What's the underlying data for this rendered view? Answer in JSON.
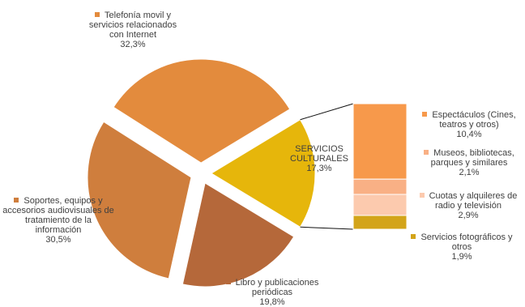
{
  "chart_data": {
    "type": "bar-of-pie",
    "pie": [
      {
        "name": "Telefonía movil y servicios relacionados con Internet",
        "value": "32,3%",
        "pct": 32.3,
        "color": "#E38B3D"
      },
      {
        "name": "SERVICIOS CULTURALES",
        "value": "17,3%",
        "pct": 17.3,
        "color": "#E6B60B"
      },
      {
        "name": "Libro y publicaciones periódicas",
        "value": "19,8%",
        "pct": 19.8,
        "color": "#B5683A"
      },
      {
        "name": "Soportes, equipos y accesorios audiovisuales de tratamiento de la información",
        "value": "30,5%",
        "pct": 30.5,
        "color": "#CF7E3D"
      }
    ],
    "breakdown": [
      {
        "name": "Espectáculos (Cines, teatros y otros)",
        "value": "10,4%",
        "pct": 10.4,
        "color": "#F7994B"
      },
      {
        "name": "Museos, bibliotecas, parques y similares",
        "value": "2,1%",
        "pct": 2.1,
        "color": "#F9B085"
      },
      {
        "name": "Cuotas y alquileres de radio y televisión",
        "value": "2,9%",
        "pct": 2.9,
        "color": "#FCCAAE"
      },
      {
        "name": "Servicios fotográficos y otros",
        "value": "1,9%",
        "pct": 1.9,
        "color": "#D3A419"
      }
    ]
  }
}
